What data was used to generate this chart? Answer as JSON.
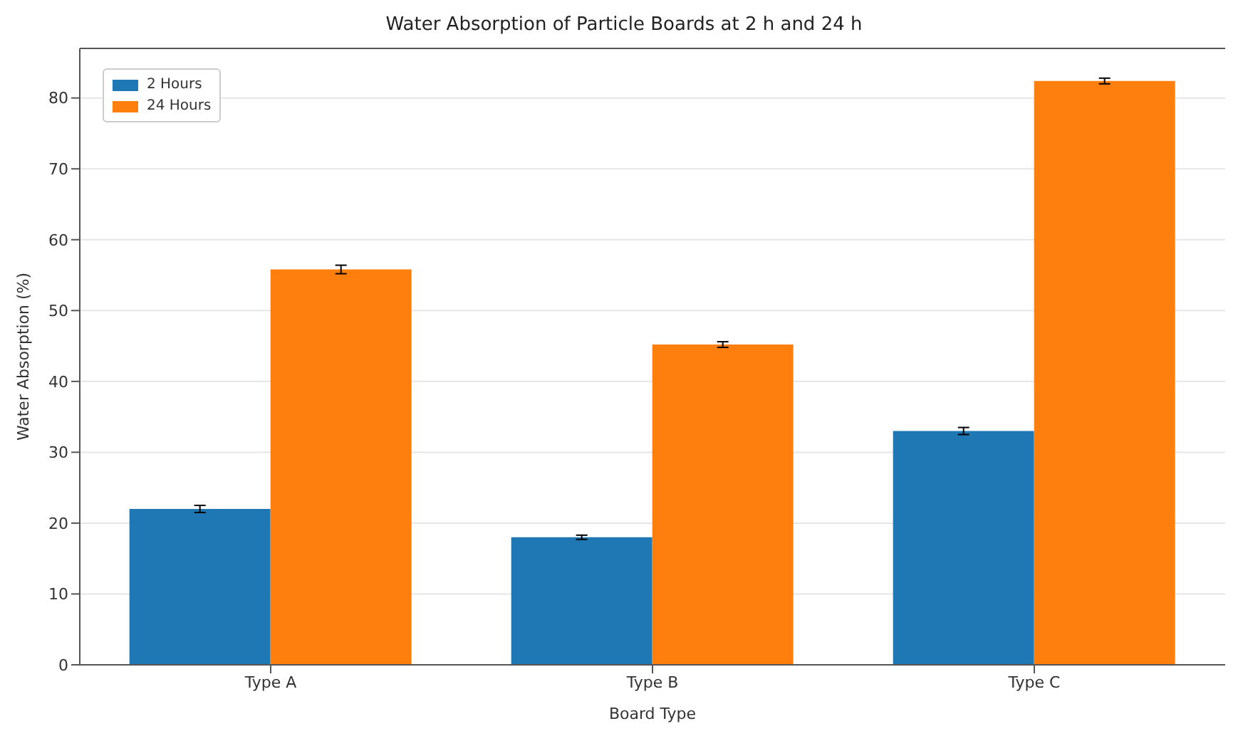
{
  "chart_data": {
    "type": "bar",
    "title": "Water Absorption of Particle Boards at 2 h and 24 h",
    "xlabel": "Board Type",
    "ylabel": "Water Absorption (%)",
    "categories": [
      "Type A",
      "Type B",
      "Type C"
    ],
    "series": [
      {
        "name": "2 Hours",
        "color": "#1f77b4",
        "values": [
          22,
          18,
          33
        ],
        "errors": [
          0.5,
          0.3,
          0.5
        ]
      },
      {
        "name": "24 Hours",
        "color": "#ff7f0e",
        "values": [
          55.8,
          45.2,
          82.4
        ],
        "errors": [
          0.6,
          0.4,
          0.4
        ]
      }
    ],
    "ylim": [
      0,
      87
    ],
    "yticks": [
      0,
      10,
      20,
      30,
      40,
      50,
      60,
      70,
      80
    ],
    "grid": "y",
    "legend": "top left"
  }
}
